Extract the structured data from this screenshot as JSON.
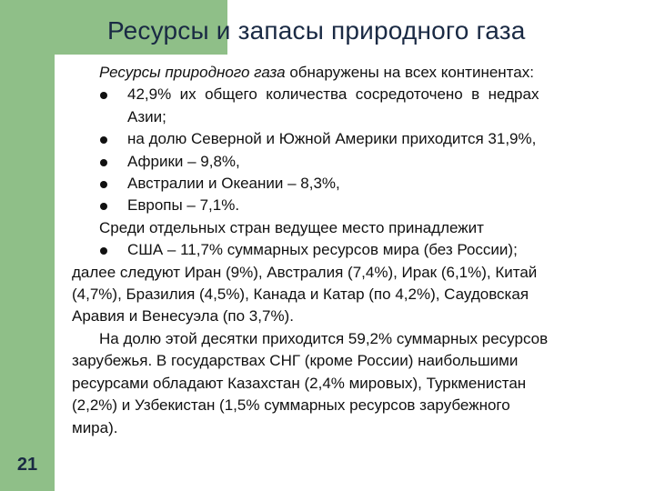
{
  "title": "Ресурсы и запасы природного газа",
  "page_number": "21",
  "colors": {
    "sidebar": "#8fbf88",
    "title": "#1a2a44"
  },
  "content": {
    "intro_italic": "Ресурсы природного газа",
    "intro_rest": " обнаружены на всех континентах:",
    "bullets": [
      {
        "line1": "42,9%  их  общего  количества  сосредоточено  в  недрах",
        "line2": "Азии;"
      },
      {
        "line1": "на долю Северной и Южной Америки приходится 31,9%,"
      },
      {
        "line1": "Африки – 9,8%,"
      },
      {
        "line1": "Австралии и Океании – 8,3%,"
      },
      {
        "line1": "Европы – 7,1%."
      }
    ],
    "countries_lead": "Среди отдельных стран ведущее место принадлежит",
    "usa_bullet": "США – 11,7% суммарных ресурсов мира (без России);",
    "para1_lines": [
      "далее следуют Иран (9%), Австралия (7,4%), Ирак (6,1%), Китай",
      "(4,7%), Бразилия (4,5%), Канада и Катар (по 4,2%), Саудовская",
      "Аравия и Венесуэла (по 3,7%)."
    ],
    "para2_lines": [
      "На долю этой десятки приходится 59,2% суммарных ресурсов",
      "зарубежья. В государствах СНГ (кроме России) наибольшими",
      "ресурсами обладают Казахстан (2,4% мировых), Туркменистан",
      "(2,2%) и Узбекистан (1,5% суммарных ресурсов зарубежного",
      "мира)."
    ]
  }
}
